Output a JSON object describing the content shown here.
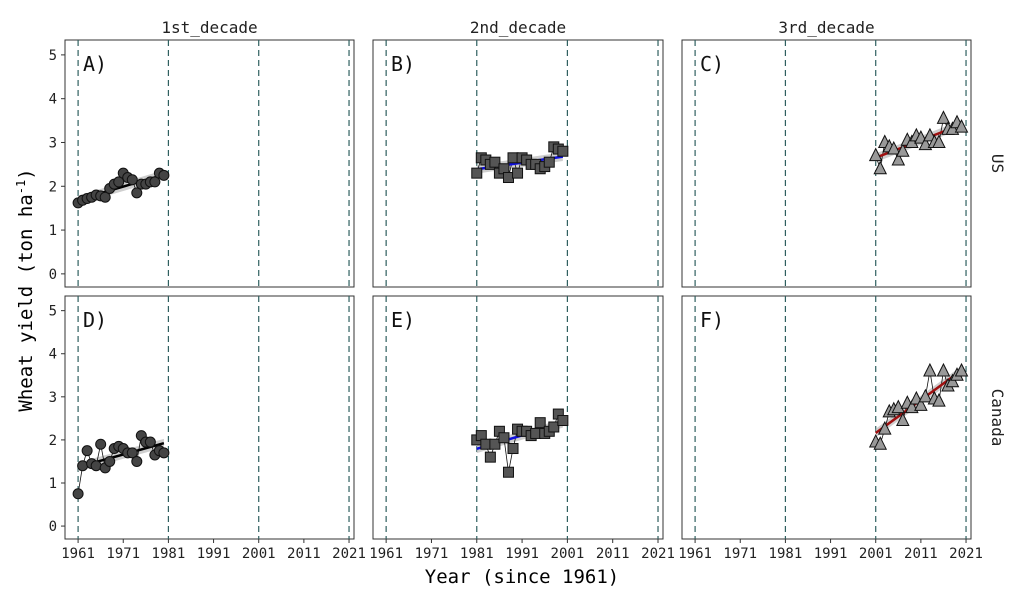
{
  "chart_data": {
    "type": "scatter",
    "ylabel": "Wheat yield (ton ha",
    "ylabel_sup": "-1",
    "ylabel_close": ")",
    "xlabel": "Year (since 1961)",
    "xlim": [
      1958.1,
      2022.1
    ],
    "ylim": [
      -0.3,
      5.34
    ],
    "x_ticks": [
      1961,
      1971,
      1981,
      1991,
      2001,
      2011,
      2021
    ],
    "y_ticks": [
      0,
      1,
      2,
      3,
      4,
      5
    ],
    "vlines": [
      1961,
      1981,
      2001,
      2021
    ],
    "col_strips": [
      "1st_decade",
      "2nd_decade",
      "3rd_decade"
    ],
    "row_strips": [
      "US",
      "Canada"
    ],
    "colors": {
      "vline": "#2f5f5f",
      "decade1": "#000000",
      "decade2": "#1010e0",
      "decade3": "#a01010",
      "band": "#bbbbbb"
    },
    "panels": [
      {
        "label": "A)",
        "row": 0,
        "col": 0,
        "shape": "circle",
        "fill": "#444444",
        "start": 1961,
        "values": [
          1.62,
          1.68,
          1.72,
          1.75,
          1.8,
          1.78,
          1.75,
          1.95,
          2.05,
          2.1,
          2.3,
          2.2,
          2.15,
          1.85,
          2.05,
          2.05,
          2.1,
          2.1,
          2.3,
          2.25
        ]
      },
      {
        "label": "B)",
        "row": 0,
        "col": 1,
        "shape": "square",
        "fill": "#555555",
        "start": 1981,
        "values": [
          2.3,
          2.65,
          2.6,
          2.5,
          2.55,
          2.3,
          2.4,
          2.2,
          2.65,
          2.3,
          2.65,
          2.6,
          2.5,
          2.5,
          2.4,
          2.45,
          2.55,
          2.9,
          2.85,
          2.8
        ]
      },
      {
        "label": "C)",
        "row": 0,
        "col": 2,
        "shape": "triangle",
        "fill": "#999999",
        "start": 2001,
        "values": [
          2.7,
          2.4,
          3.0,
          2.9,
          2.85,
          2.6,
          2.8,
          3.05,
          3.0,
          3.15,
          3.1,
          2.95,
          3.15,
          3.0,
          3.0,
          3.55,
          3.3,
          3.3,
          3.45,
          3.35
        ]
      },
      {
        "label": "D)",
        "row": 1,
        "col": 0,
        "shape": "circle",
        "fill": "#444444",
        "start": 1961,
        "values": [
          0.75,
          1.4,
          1.75,
          1.45,
          1.4,
          1.9,
          1.35,
          1.5,
          1.8,
          1.85,
          1.8,
          1.7,
          1.7,
          1.5,
          2.1,
          1.95,
          1.95,
          1.65,
          1.75,
          1.7
        ]
      },
      {
        "label": "E)",
        "row": 1,
        "col": 1,
        "shape": "square",
        "fill": "#555555",
        "start": 1981,
        "values": [
          2.0,
          2.1,
          1.9,
          1.6,
          1.9,
          2.2,
          2.05,
          1.25,
          1.8,
          2.25,
          2.2,
          2.2,
          2.1,
          2.15,
          2.4,
          2.15,
          2.2,
          2.3,
          2.6,
          2.45
        ]
      },
      {
        "label": "F)",
        "row": 1,
        "col": 2,
        "shape": "triangle",
        "fill": "#999999",
        "start": 2001,
        "values": [
          1.95,
          1.9,
          2.25,
          2.65,
          2.7,
          2.75,
          2.45,
          2.85,
          2.75,
          2.95,
          2.8,
          3.0,
          3.6,
          2.95,
          2.9,
          3.6,
          3.25,
          3.35,
          3.5,
          3.6
        ]
      }
    ]
  }
}
